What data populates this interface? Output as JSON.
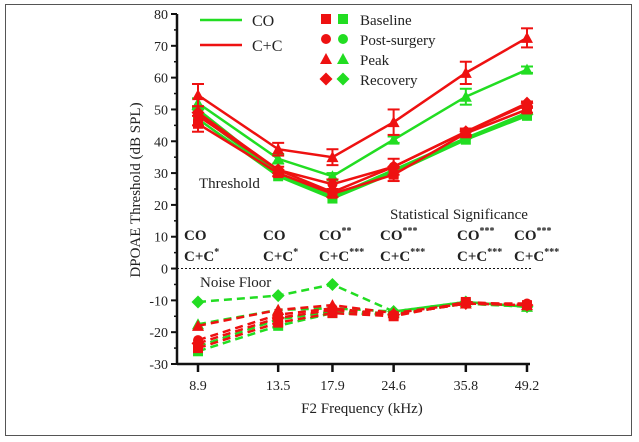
{
  "chart_data": {
    "type": "line",
    "xlabel": "F2 Frequency (kHz)",
    "ylabel": "DPOAE Threshold (dB SPL)",
    "x": [
      8.9,
      13.5,
      17.9,
      24.6,
      35.8,
      49.2
    ],
    "x_tick_labels": [
      "8.9",
      "13.5",
      "17.9",
      "24.6",
      "35.8",
      "49.2"
    ],
    "x_scale": "log",
    "ylim": [
      -30,
      80
    ],
    "y_ticks": [
      -30,
      -20,
      -10,
      0,
      10,
      20,
      30,
      40,
      50,
      60,
      70,
      80
    ],
    "y_tick_labels": [
      "-30",
      "-20",
      "-10",
      "0",
      "10",
      "20",
      "30",
      "40",
      "50",
      "60",
      "70",
      "80"
    ],
    "colors": {
      "CO": "#22dd22",
      "C+C": "#ee1111"
    },
    "legend": {
      "groups": [
        {
          "name": "CO",
          "label": "CO"
        },
        {
          "name": "C+C",
          "label": "C+C"
        }
      ],
      "conditions": [
        {
          "label": "Baseline",
          "marker": "square"
        },
        {
          "label": "Post-surgery",
          "marker": "circle"
        },
        {
          "label": "Peak",
          "marker": "triangle"
        },
        {
          "label": "Recovery",
          "marker": "diamond"
        }
      ],
      "placement": "top-left"
    },
    "annotations": {
      "threshold": "Threshold",
      "noise_floor": "Noise Floor",
      "significance_title": "Statistical Significance"
    },
    "significance": [
      {
        "co": "CO",
        "co_stars": "",
        "cc": "C+C",
        "cc_stars": "*"
      },
      {
        "co": "CO",
        "co_stars": "",
        "cc": "C+C",
        "cc_stars": "*"
      },
      {
        "co": "CO",
        "co_stars": "**",
        "cc": "C+C",
        "cc_stars": "***"
      },
      {
        "co": "CO",
        "co_stars": "***",
        "cc": "C+C",
        "cc_stars": "***"
      },
      {
        "co": "CO",
        "co_stars": "***",
        "cc": "C+C",
        "cc_stars": "***"
      },
      {
        "co": "CO",
        "co_stars": "***",
        "cc": "C+C",
        "cc_stars": "***"
      }
    ],
    "series": [
      {
        "name": "CO Baseline threshold",
        "group": "CO",
        "marker": "square",
        "dashed": false,
        "values": [
          47,
          29,
          22,
          30,
          40.5,
          48
        ]
      },
      {
        "name": "CO Post-surgery threshold",
        "group": "CO",
        "marker": "circle",
        "dashed": false,
        "values": [
          48.5,
          29.5,
          22.5,
          30.5,
          41,
          49
        ]
      },
      {
        "name": "CO Peak threshold",
        "group": "CO",
        "marker": "triangle",
        "dashed": false,
        "values": [
          52,
          34.5,
          29,
          40.5,
          54,
          62.5
        ],
        "error": [
          1.5,
          1.5,
          1,
          1,
          2.5,
          1
        ]
      },
      {
        "name": "CO Recovery threshold",
        "group": "CO",
        "marker": "diamond",
        "dashed": false,
        "values": [
          50,
          30,
          22.5,
          31,
          41,
          48.5
        ]
      },
      {
        "name": "C+C Baseline threshold",
        "group": "C+C",
        "marker": "square",
        "dashed": false,
        "values": [
          45.5,
          30,
          23.5,
          29.5,
          42.5,
          50
        ],
        "error": [
          2.5,
          1,
          1,
          2,
          1,
          1
        ]
      },
      {
        "name": "C+C Post-surgery threshold",
        "group": "C+C",
        "marker": "circle",
        "dashed": false,
        "values": [
          48,
          31,
          26.5,
          32,
          43,
          51.5
        ],
        "error": [
          3,
          1,
          1.5,
          2.5,
          1,
          1
        ]
      },
      {
        "name": "C+C Peak threshold",
        "group": "C+C",
        "marker": "triangle",
        "dashed": false,
        "values": [
          54.5,
          37.5,
          35,
          46,
          61.5,
          72.5
        ],
        "error": [
          3.5,
          2,
          2.5,
          4,
          3.5,
          3
        ]
      },
      {
        "name": "C+C Recovery threshold",
        "group": "C+C",
        "marker": "diamond",
        "dashed": false,
        "values": [
          49,
          31,
          24,
          32,
          43,
          52
        ]
      },
      {
        "name": "CO Baseline noise floor",
        "group": "CO",
        "marker": "square",
        "dashed": true,
        "values": [
          -26,
          -18,
          -14,
          -14.5,
          -11,
          -12
        ]
      },
      {
        "name": "CO Post-surgery noise floor",
        "group": "CO",
        "marker": "circle",
        "dashed": true,
        "values": [
          -24.5,
          -16,
          -13.5,
          -14,
          -11,
          -12
        ]
      },
      {
        "name": "CO Peak noise floor",
        "group": "CO",
        "marker": "triangle",
        "dashed": true,
        "values": [
          -17.5,
          -13,
          -12.5,
          -13.5,
          -10.5,
          -12
        ]
      },
      {
        "name": "CO Recovery noise floor",
        "group": "CO",
        "marker": "diamond",
        "dashed": true,
        "values": [
          -10.5,
          -8.5,
          -5,
          -13.5,
          -10.5,
          -12
        ]
      },
      {
        "name": "C+C Baseline noise floor",
        "group": "C+C",
        "marker": "square",
        "dashed": true,
        "values": [
          -25,
          -17,
          -14,
          -15,
          -10.5,
          -11.5
        ]
      },
      {
        "name": "C+C Post-surgery noise floor",
        "group": "C+C",
        "marker": "circle",
        "dashed": true,
        "values": [
          -22.5,
          -14.5,
          -12.5,
          -14.5,
          -11,
          -11
        ]
      },
      {
        "name": "C+C Peak noise floor",
        "group": "C+C",
        "marker": "triangle",
        "dashed": true,
        "values": [
          -18,
          -13,
          -11.5,
          -14,
          -11,
          -11.5
        ]
      },
      {
        "name": "C+C Recovery noise floor",
        "group": "C+C",
        "marker": "diamond",
        "dashed": true,
        "values": [
          -23.5,
          -15.5,
          -13,
          -14.5,
          -11,
          -11.5
        ]
      }
    ]
  }
}
